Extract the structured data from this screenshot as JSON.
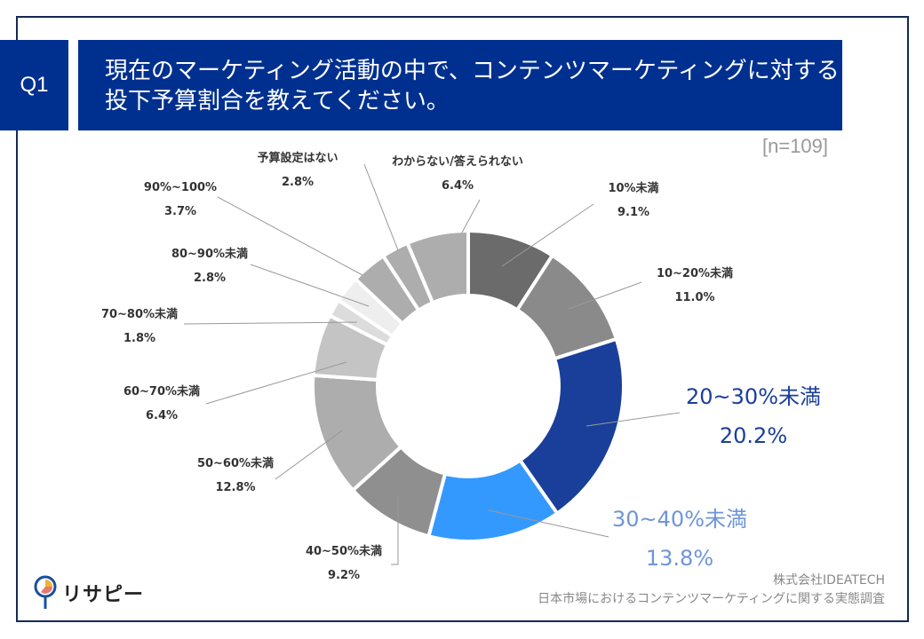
{
  "header": {
    "question_no": "Q1",
    "title": "現在のマーケティング活動の中で、コンテンツマーケティングに対する投下予算割合を教えてください。"
  },
  "sample_size": "[n=109]",
  "footer": {
    "company": "株式会社IDEATECH",
    "survey": "日本市場におけるコンテンツマーケティングに関する実態調査"
  },
  "logo": {
    "text": "リサピー"
  },
  "chart_data": {
    "type": "pie",
    "variant": "donut",
    "direction": "clockwise from top",
    "categories": [
      "10%未満",
      "10~20%未満",
      "20~30%未満",
      "30~40%未満",
      "40~50%未満",
      "50~60%未満",
      "60~70%未満",
      "70~80%未満",
      "80~90%未満",
      "90%~100%",
      "予算設定はない",
      "わからない/答えられない"
    ],
    "values": [
      9.1,
      11.0,
      20.2,
      13.8,
      9.2,
      12.8,
      6.4,
      1.8,
      2.8,
      3.7,
      2.8,
      6.4
    ],
    "value_labels": [
      "9.1%",
      "11.0%",
      "20.2%",
      "13.8%",
      "9.2%",
      "12.8%",
      "6.4%",
      "1.8%",
      "2.8%",
      "3.7%",
      "2.8%",
      "6.4%"
    ],
    "colors": [
      "#6b6b6b",
      "#8a8a8a",
      "#1a3f9a",
      "#3399ff",
      "#8f8f8f",
      "#adadad",
      "#c4c4c4",
      "#dcdcdc",
      "#eeeeee",
      "#adadad",
      "#adadad",
      "#adadad"
    ],
    "highlight_label_colors": {
      "20~30%未満": "#1a3f9a",
      "30~40%未満": "#6f95d8"
    }
  }
}
